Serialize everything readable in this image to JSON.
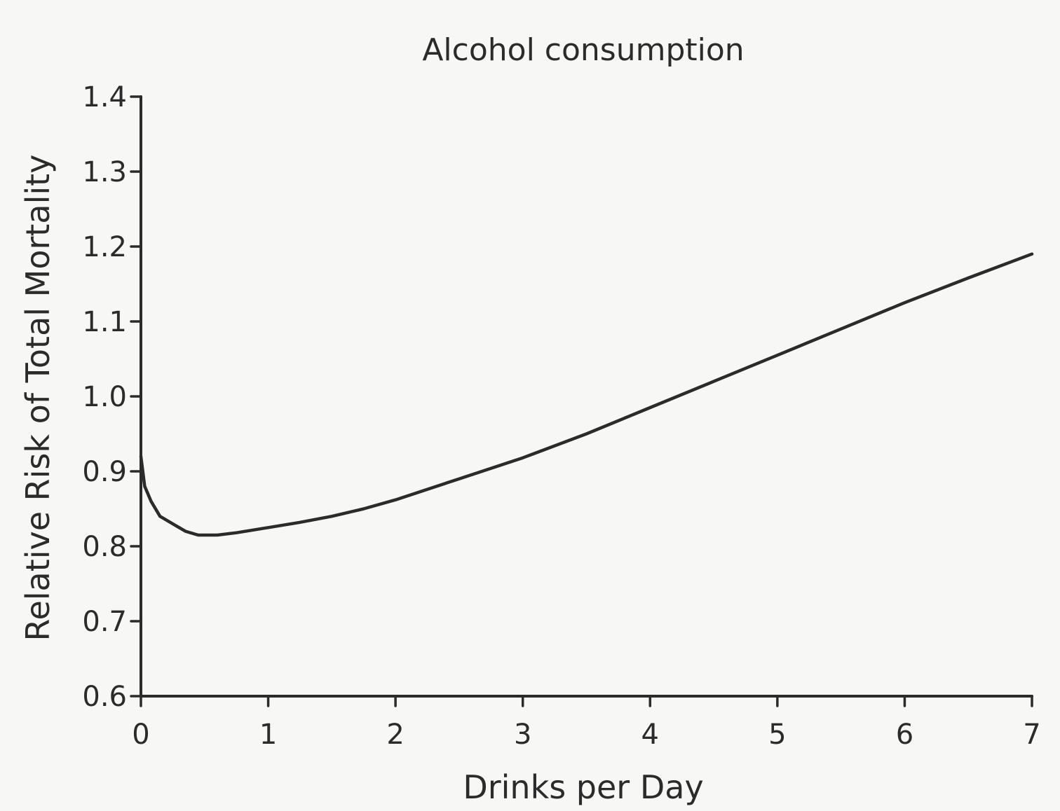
{
  "chart_data": {
    "type": "line",
    "title": "Alcohol consumption",
    "xlabel": "Drinks per Day",
    "ylabel": "Relative Risk of Total Mortality",
    "xlim": [
      0,
      7
    ],
    "ylim": [
      0.6,
      1.4
    ],
    "x_ticks": [
      "0",
      "1",
      "2",
      "3",
      "4",
      "5",
      "6",
      "7"
    ],
    "y_ticks": [
      "0.6",
      "0.7",
      "0.8",
      "0.9",
      "1.0",
      "1.1",
      "1.2",
      "1.3",
      "1.4"
    ],
    "grid": false,
    "legend": "none",
    "series": [
      {
        "x": [
          0,
          0.03,
          0.08,
          0.15,
          0.25,
          0.35,
          0.45,
          0.6,
          0.75,
          1.0,
          1.25,
          1.5,
          1.75,
          2.0,
          2.5,
          3.0,
          3.5,
          4.0,
          4.5,
          5.0,
          5.5,
          6.0,
          6.5,
          7.0
        ],
        "y": [
          0.92,
          0.88,
          0.86,
          0.84,
          0.83,
          0.82,
          0.815,
          0.815,
          0.818,
          0.825,
          0.832,
          0.84,
          0.85,
          0.862,
          0.89,
          0.918,
          0.95,
          0.985,
          1.02,
          1.055,
          1.09,
          1.125,
          1.158,
          1.19
        ]
      }
    ]
  }
}
